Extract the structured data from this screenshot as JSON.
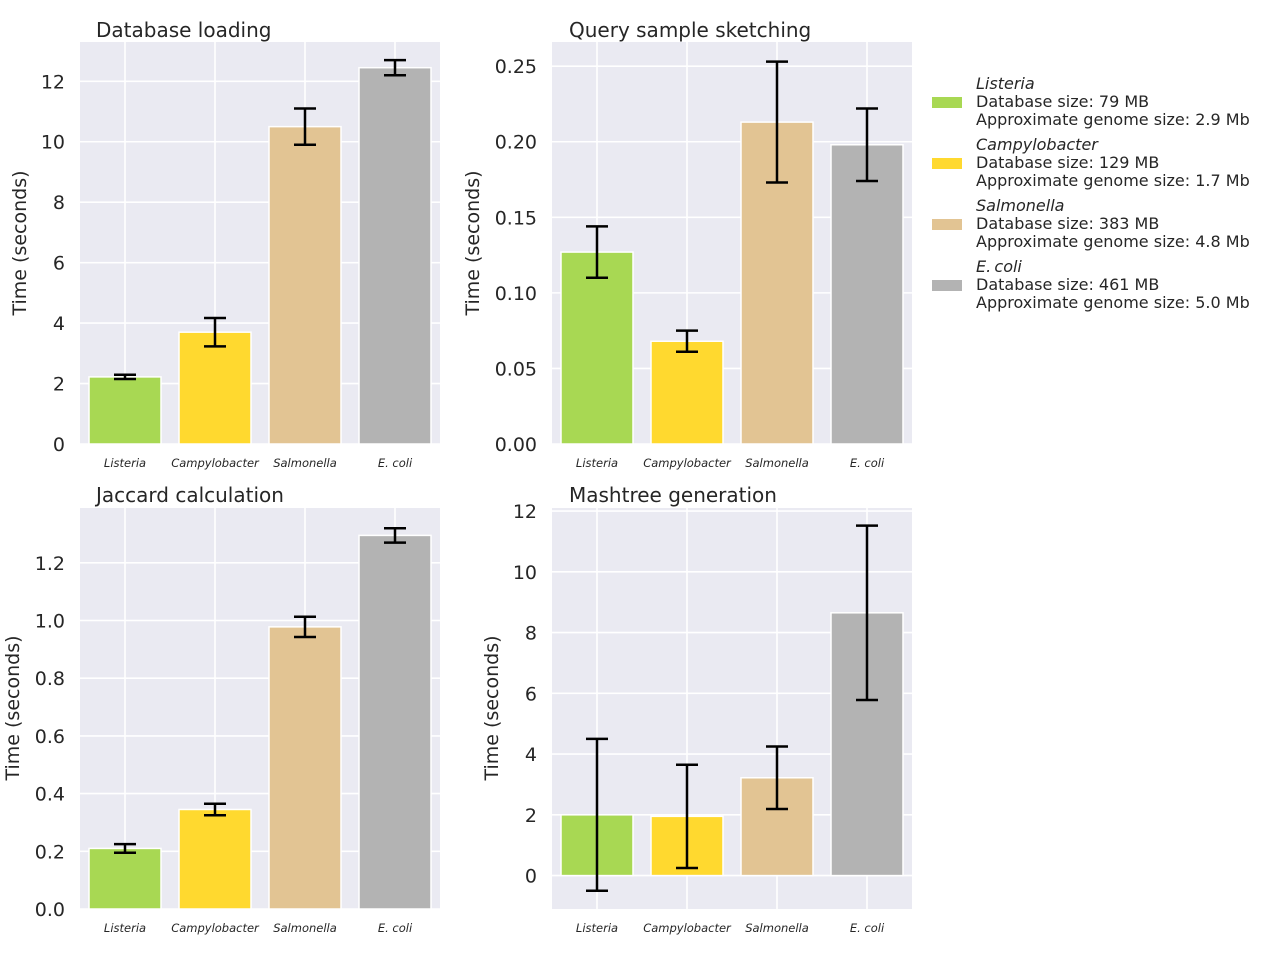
{
  "chart_data": [
    {
      "type": "bar",
      "title": "Database loading",
      "xlabel": "",
      "ylabel": "Time (seconds)",
      "categories": [
        "Listeria",
        "Campylobacter",
        "Salmonella",
        "E. coli"
      ],
      "values": [
        2.22,
        3.7,
        10.5,
        12.45
      ],
      "errors": [
        0.07,
        0.47,
        0.6,
        0.25
      ],
      "ylim": [
        0,
        13.3
      ],
      "yticks": [
        "0",
        "2",
        "4",
        "6",
        "8",
        "10",
        "12"
      ],
      "colors": [
        "#a8d853",
        "#ffd92f",
        "#e2c493",
        "#b3b3b3"
      ],
      "grid": true
    },
    {
      "type": "bar",
      "title": "Query sample sketching",
      "xlabel": "",
      "ylabel": "Time (seconds)",
      "categories": [
        "Listeria",
        "Campylobacter",
        "Salmonella",
        "E. coli"
      ],
      "values": [
        0.127,
        0.068,
        0.213,
        0.198
      ],
      "errors": [
        0.017,
        0.007,
        0.04,
        0.024
      ],
      "ylim": [
        0,
        0.266
      ],
      "yticks": [
        "0.00",
        "0.05",
        "0.10",
        "0.15",
        "0.20",
        "0.25"
      ],
      "colors": [
        "#a8d853",
        "#ffd92f",
        "#e2c493",
        "#b3b3b3"
      ],
      "grid": true
    },
    {
      "type": "bar",
      "title": "Jaccard calculation",
      "xlabel": "",
      "ylabel": "Time (seconds)",
      "categories": [
        "Listeria",
        "Campylobacter",
        "Salmonella",
        "E. coli"
      ],
      "values": [
        0.21,
        0.345,
        0.978,
        1.295
      ],
      "errors": [
        0.015,
        0.02,
        0.035,
        0.025
      ],
      "ylim": [
        0,
        1.39
      ],
      "yticks": [
        "0.0",
        "0.2",
        "0.4",
        "0.6",
        "0.8",
        "1.0",
        "1.2"
      ],
      "colors": [
        "#a8d853",
        "#ffd92f",
        "#e2c493",
        "#b3b3b3"
      ],
      "grid": true
    },
    {
      "type": "bar",
      "title": "Mashtree generation",
      "xlabel": "",
      "ylabel": "Time (seconds)",
      "categories": [
        "Listeria",
        "Campylobacter",
        "Salmonella",
        "E. coli"
      ],
      "values": [
        2.0,
        1.95,
        3.22,
        8.65
      ],
      "errors": [
        2.5,
        1.7,
        1.03,
        2.87
      ],
      "ylim": [
        -1.1,
        12.1
      ],
      "yticks": [
        "0",
        "2",
        "4",
        "6",
        "8",
        "10",
        "12"
      ],
      "colors": [
        "#a8d853",
        "#ffd92f",
        "#e2c493",
        "#b3b3b3"
      ],
      "grid": true
    }
  ],
  "legend": {
    "placement": "right",
    "items": [
      {
        "name": "Listeria",
        "db_size": "Database size: 79 MB",
        "genome_size": "Approximate genome size: 2.9 Mb",
        "color": "#a8d853"
      },
      {
        "name": "Campylobacter",
        "db_size": "Database size: 129 MB",
        "genome_size": "Approximate genome size: 1.7 Mb",
        "color": "#ffd92f"
      },
      {
        "name": "Salmonella",
        "db_size": "Database size: 383 MB",
        "genome_size": "Approximate genome size: 4.8 Mb",
        "color": "#e2c493"
      },
      {
        "name": "E. coli",
        "db_size": "Database size: 461 MB",
        "genome_size": "Approximate genome size: 5.0 Mb",
        "color": "#b3b3b3"
      }
    ]
  },
  "style": {
    "axes_bg": "#eaeaf2",
    "grid_color": "#ffffff",
    "text_color": "#262626",
    "error_color": "#000000"
  }
}
